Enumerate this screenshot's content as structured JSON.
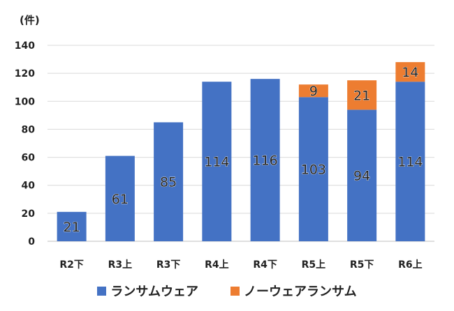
{
  "unit_label": "(件)",
  "chart_data": {
    "type": "bar",
    "stacked": true,
    "categories": [
      "R2下",
      "R3上",
      "R3下",
      "R4上",
      "R4下",
      "R5上",
      "R5下",
      "R6上"
    ],
    "series": [
      {
        "name": "ランサムウェア",
        "color": "#4472C4",
        "values": [
          21,
          61,
          85,
          114,
          116,
          103,
          94,
          114
        ]
      },
      {
        "name": "ノーウェアランサム",
        "color": "#ED7D31",
        "values": [
          0,
          0,
          0,
          0,
          0,
          9,
          21,
          14
        ]
      }
    ],
    "ylim": [
      0,
      140
    ],
    "yticks": [
      0,
      20,
      40,
      60,
      80,
      100,
      120,
      140
    ],
    "grid": true,
    "legend_position": "bottom"
  }
}
